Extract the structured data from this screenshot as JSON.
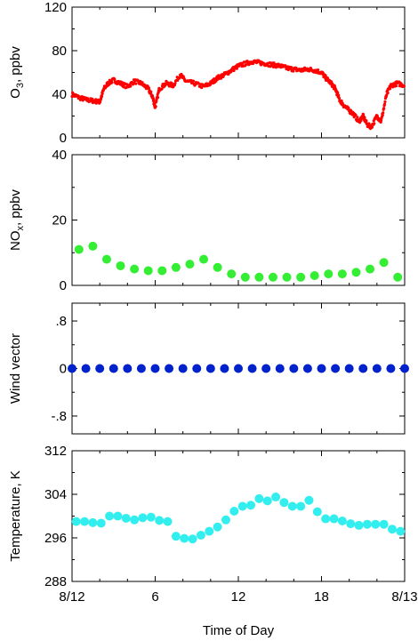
{
  "chart_data": [
    {
      "type": "scatter",
      "id": "o3",
      "ylabel_main": "O",
      "ylabel_sub": "3",
      "ylabel_rest": ", ppbv",
      "ylim": [
        0,
        120
      ],
      "yticks": [
        0,
        40,
        80,
        120
      ],
      "yticklabels": [
        "0",
        "40",
        "80",
        "120"
      ],
      "color": "#ff0000",
      "marker": "dense-dots",
      "series": [
        {
          "x": [
            0,
            0.5,
            1,
            1.5,
            2,
            2.3,
            2.6,
            3,
            3.5,
            4,
            4.5,
            5,
            5.5,
            5.8,
            6,
            6.3,
            6.8,
            7.3,
            7.8,
            8.2,
            8.8,
            9.5,
            10,
            10.5,
            11,
            11.5,
            12,
            12.5,
            13,
            13.5,
            14,
            14.5,
            15,
            15.5,
            16,
            16.5,
            17,
            17.5,
            18,
            18.3,
            18.7,
            19,
            19.3,
            19.6,
            20,
            20.3,
            20.7,
            21,
            21.3,
            21.6,
            22,
            22.3,
            22.7,
            23,
            23.5,
            24
          ],
          "y": [
            40,
            37,
            35,
            34,
            33,
            45,
            50,
            53,
            50,
            47,
            52,
            50,
            45,
            38,
            28,
            45,
            50,
            48,
            58,
            52,
            50,
            47,
            50,
            55,
            58,
            62,
            66,
            68,
            70,
            69,
            68,
            67,
            66,
            64,
            63,
            62,
            63,
            62,
            60,
            55,
            50,
            45,
            35,
            30,
            25,
            22,
            15,
            20,
            12,
            10,
            20,
            15,
            40,
            48,
            50,
            48
          ]
        }
      ]
    },
    {
      "type": "scatter",
      "id": "nox",
      "ylabel_main": "NO",
      "ylabel_sub": "x",
      "ylabel_rest": ", ppbv",
      "ylim": [
        0,
        40
      ],
      "yticks": [
        0,
        20,
        40
      ],
      "yticklabels": [
        "0",
        "20",
        "40"
      ],
      "color": "#33ee33",
      "marker": "circle",
      "series": [
        {
          "x": [
            0.5,
            1.5,
            2.5,
            3.5,
            4.5,
            5.5,
            6.5,
            7.5,
            8.5,
            9.5,
            10.5,
            11.5,
            12.5,
            13.5,
            14.5,
            15.5,
            16.5,
            17.5,
            18.5,
            19.5,
            20.5,
            21.5,
            22.5,
            23.5
          ],
          "y": [
            11,
            12,
            8,
            6,
            5,
            4.5,
            4.5,
            5.5,
            6.5,
            8,
            5.5,
            3.5,
            2.5,
            2.5,
            2.5,
            2.5,
            2.5,
            3,
            3.5,
            3.5,
            4,
            5,
            7,
            2.5
          ]
        }
      ]
    },
    {
      "type": "scatter",
      "id": "wind",
      "ylabel": "Wind vector",
      "ylim": [
        -1.1,
        1.1
      ],
      "yticks": [
        -0.8,
        0,
        0.8
      ],
      "yticklabels": [
        "-.8",
        "0",
        ".8"
      ],
      "color": "#0022cc",
      "marker": "circle",
      "series": [
        {
          "x": [
            0,
            1,
            2,
            3,
            4,
            5,
            6,
            7,
            8,
            9,
            10,
            11,
            12,
            13,
            14,
            15,
            16,
            17,
            18,
            19,
            20,
            21,
            22,
            23,
            24
          ],
          "y": [
            0,
            0,
            0,
            0,
            0,
            0,
            0,
            0,
            0,
            0,
            0,
            0,
            0,
            0,
            0,
            0,
            0,
            0,
            0,
            0,
            0,
            0,
            0,
            0,
            0
          ]
        }
      ]
    },
    {
      "type": "scatter",
      "id": "temp",
      "ylabel": "Temperature, K",
      "ylim": [
        288,
        312
      ],
      "yticks": [
        288,
        296,
        304,
        312
      ],
      "yticklabels": [
        "288",
        "296",
        "304",
        "312"
      ],
      "color": "#33eeee",
      "marker": "circle",
      "series": [
        {
          "x": [
            0.3,
            0.9,
            1.5,
            2.1,
            2.7,
            3.3,
            3.9,
            4.5,
            5.1,
            5.7,
            6.3,
            6.9,
            7.5,
            8.1,
            8.7,
            9.3,
            9.9,
            10.5,
            11.1,
            11.7,
            12.3,
            12.9,
            13.5,
            14.1,
            14.7,
            15.3,
            15.9,
            16.5,
            17.1,
            17.7,
            18.3,
            18.9,
            19.5,
            20.1,
            20.7,
            21.3,
            21.9,
            22.5,
            23.1,
            23.7
          ],
          "y": [
            299,
            299,
            298.8,
            298.7,
            300,
            300,
            299.6,
            299.3,
            299.7,
            299.8,
            299.2,
            299,
            296.3,
            295.9,
            295.8,
            296.5,
            297.2,
            298,
            299.3,
            300.9,
            301.8,
            302,
            303.2,
            302.8,
            303.5,
            302.5,
            301.8,
            301.8,
            302.9,
            300.8,
            299.5,
            299.5,
            299.1,
            298.6,
            298.3,
            298.5,
            298.5,
            298.5,
            297.6,
            297.2
          ]
        }
      ]
    }
  ],
  "x_axis": {
    "xlim": [
      0,
      24
    ],
    "xticks": [
      0,
      6,
      12,
      18,
      24
    ],
    "xticklabels": [
      "8/12",
      "6",
      "12",
      "18",
      "8/13"
    ],
    "xlabel": "Time of Day"
  }
}
